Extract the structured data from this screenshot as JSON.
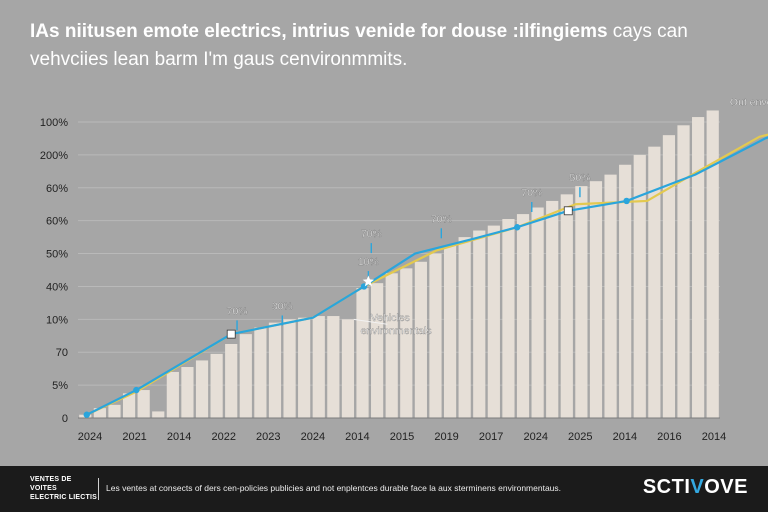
{
  "headline": {
    "bold": "IAs niitusen emote electrics, intrius venide for douse :ilfingiems",
    "light_tail": " cays can",
    "line2": "vehvciies lean barm I'm gaus cenvironmmits."
  },
  "colors": {
    "background": "#a6a6a6",
    "bar": "#e6dfd7",
    "line_blue": "#2aa5dc",
    "line_yellow": "#e3c94f",
    "footer_bg": "#1b1b1b",
    "logo_accent": "#34a8e0"
  },
  "chart_data": {
    "type": "bar",
    "title": "",
    "xlabel": "",
    "ylabel": "",
    "grid": true,
    "y_tick_labels": [
      "0",
      "5%",
      "70",
      "10%",
      "40%",
      "50%",
      "60%",
      "60%",
      "200%",
      "100%"
    ],
    "x_tick_labels": [
      "2024",
      "2021",
      "2014",
      "2022",
      "2023",
      "2024",
      "2014",
      "2015",
      "2019",
      "2017",
      "2024",
      "2025",
      "2014",
      "2016",
      "2014"
    ],
    "ylim": [
      0,
      9
    ],
    "values": [
      0.1,
      0.3,
      0.4,
      0.75,
      0.85,
      0.2,
      1.4,
      1.55,
      1.75,
      1.95,
      2.25,
      2.55,
      2.75,
      2.9,
      3.0,
      3.05,
      3.1,
      3.1,
      3.0,
      3.95,
      4.1,
      4.4,
      4.55,
      4.75,
      5.0,
      5.25,
      5.5,
      5.7,
      5.85,
      6.05,
      6.2,
      6.4,
      6.6,
      6.8,
      7.05,
      7.2,
      7.4,
      7.7,
      8.0,
      8.25,
      8.6,
      8.9,
      9.15,
      9.35
    ],
    "series": [
      {
        "color": "#2aa5dc",
        "points": [
          [
            0.1,
            0.1
          ],
          [
            3.5,
            0.85
          ],
          [
            10.0,
            2.55
          ],
          [
            15.6,
            3.05
          ],
          [
            19.1,
            4.0
          ],
          [
            22.6,
            5.0
          ],
          [
            26.6,
            5.45
          ],
          [
            29.6,
            5.8
          ],
          [
            33.1,
            6.3
          ],
          [
            37.1,
            6.6
          ],
          [
            41.8,
            7.4
          ],
          [
            46.6,
            8.5
          ],
          [
            49.7,
            9.0
          ]
        ]
      },
      {
        "color": "#e3c94f",
        "points": [
          [
            0.1,
            0.1
          ],
          [
            3.5,
            0.8
          ],
          [
            10.0,
            2.55
          ],
          [
            15.6,
            3.05
          ],
          [
            19.1,
            4.0
          ],
          [
            24.1,
            5.1
          ],
          [
            29.6,
            5.8
          ],
          [
            33.6,
            6.5
          ],
          [
            38.5,
            6.6
          ],
          [
            41.8,
            7.45
          ],
          [
            46.2,
            8.55
          ],
          [
            48.4,
            8.8
          ],
          [
            49.7,
            9.05
          ]
        ]
      }
    ],
    "annotations": [
      {
        "text": "70%",
        "x": 10.4,
        "y": 3.15
      },
      {
        "text": "30%",
        "x": 13.5,
        "y": 3.3
      },
      {
        "text": "70%",
        "x": 19.6,
        "y": 5.5
      },
      {
        "text": "10%",
        "x": 19.4,
        "y": 4.65
      },
      {
        "text": "70%",
        "x": 24.4,
        "y": 5.95
      },
      {
        "text": "70%",
        "x": 30.6,
        "y": 6.75
      },
      {
        "text": "50%",
        "x": 33.9,
        "y": 7.2
      },
      {
        "text": "Out enverices",
        "x": 46.4,
        "y": 9.5
      },
      {
        "text": "Vehicles",
        "x": 20.9,
        "y": 2.95
      },
      {
        "text": "environmentals",
        "x": 21.3,
        "y": 2.55
      }
    ],
    "markers": [
      {
        "shape": "dot",
        "x": 0.1,
        "y": 0.1
      },
      {
        "shape": "dot",
        "x": 3.5,
        "y": 0.85
      },
      {
        "shape": "square",
        "x": 10.0,
        "y": 2.55
      },
      {
        "shape": "dot",
        "x": 19.1,
        "y": 4.0
      },
      {
        "shape": "star",
        "x": 19.4,
        "y": 4.15
      },
      {
        "shape": "dot",
        "x": 29.6,
        "y": 5.8
      },
      {
        "shape": "square",
        "x": 33.1,
        "y": 6.3
      },
      {
        "shape": "dot",
        "x": 37.1,
        "y": 6.6
      },
      {
        "shape": "star",
        "x": 48.1,
        "y": 8.9
      },
      {
        "shape": "dot",
        "x": 49.7,
        "y": 9.0
      }
    ]
  },
  "footer": {
    "brand_line1": "VENTES DE VOITES",
    "brand_line2": "ELECTRIC LIECTIS",
    "caption": "Les ventes at consects of ders cen-policies publicies and not enplentces durable face la aux sterminens environmentaus.",
    "logo_main": "SCTI",
    "logo_accent": "V",
    "logo_tail": "OVE"
  }
}
